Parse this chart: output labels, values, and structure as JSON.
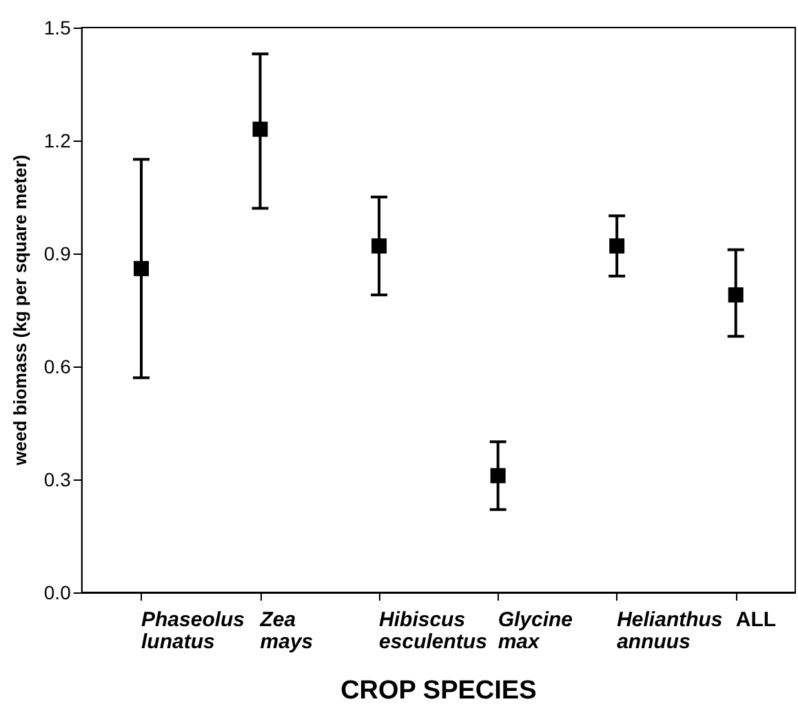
{
  "chart_data": {
    "type": "scatter",
    "categories": [
      "Phaseolus lunatus",
      "Zea mays",
      "Hibiscus esculentus",
      "Glycine max",
      "Helianthus annuus",
      "ALL"
    ],
    "values": [
      0.86,
      1.23,
      0.92,
      0.31,
      0.92,
      0.79
    ],
    "errors": [
      [
        0.57,
        1.15
      ],
      [
        1.02,
        1.43
      ],
      [
        0.79,
        1.05
      ],
      [
        0.22,
        0.4
      ],
      [
        0.84,
        1.0
      ],
      [
        0.68,
        0.91
      ]
    ],
    "color": "#000000",
    "marker": "square",
    "xlabel": "CROP SPECIES",
    "ylabel": "weed biomass (kg per square meter)",
    "ylim": [
      0,
      1.5
    ],
    "yticks": [
      {
        "value": 0,
        "label": "0.0"
      },
      0.3,
      0.6,
      0.9,
      1.2,
      1.5
    ],
    "grid": false
  }
}
